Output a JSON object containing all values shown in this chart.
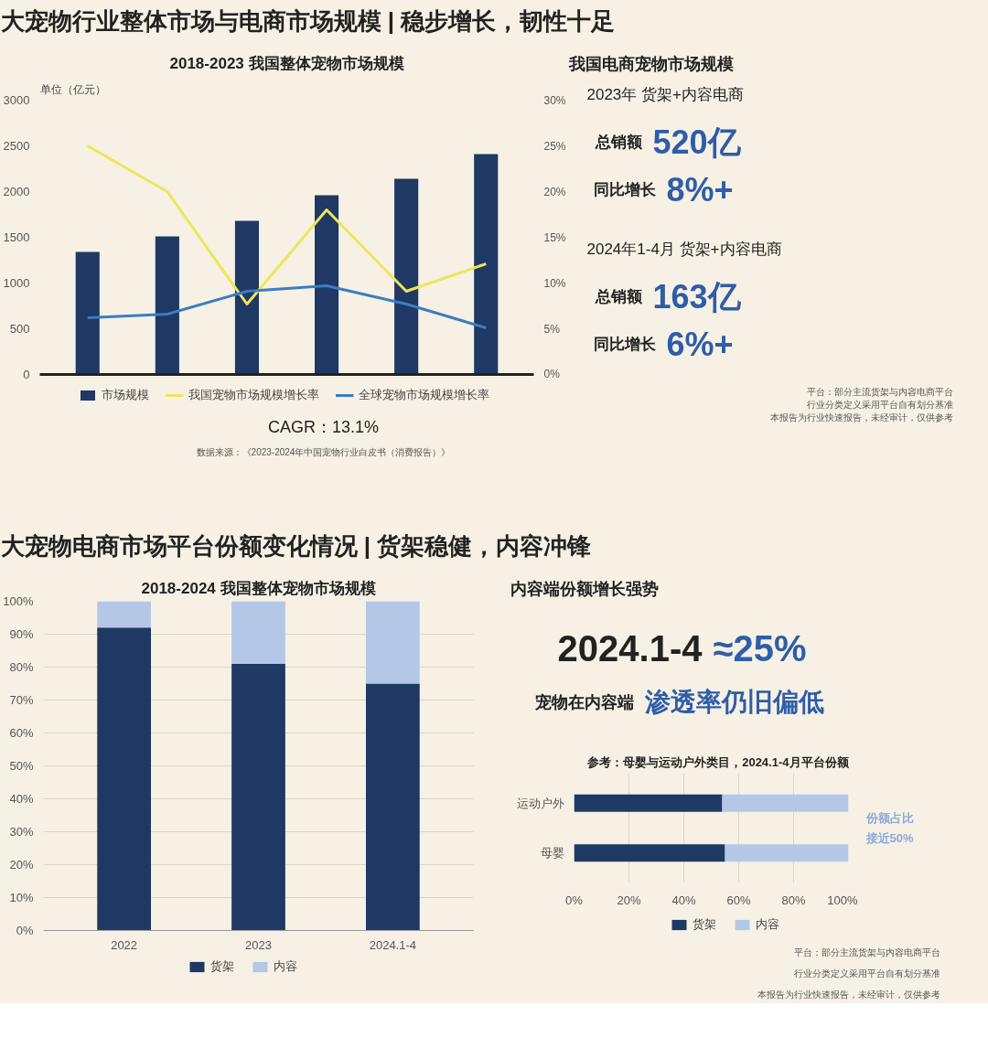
{
  "chart_data": [
    {
      "type": "other",
      "title": "大宠物行业整体市场与电商市场规模 | 稳步增长，韧性十足"
    },
    {
      "type": "bar",
      "title": "2018-2023 我国整体宠物市场规模",
      "ylabel": "单位（亿元）",
      "categories": [
        null,
        null,
        null,
        null,
        null,
        null
      ],
      "series": [
        {
          "name": "市场规模",
          "type": "bar",
          "color": "#1f3864",
          "values": [
            1340,
            1510,
            1680,
            1960,
            2140,
            2410
          ]
        },
        {
          "name": "我国宠物市场规模增长率",
          "type": "line",
          "axis": "y2",
          "color": "#ede65a",
          "values": [
            25.0,
            20.0,
            7.7,
            18.0,
            9.1,
            12.1
          ]
        },
        {
          "name": "全球宠物市场规模增长率",
          "type": "line",
          "axis": "y2",
          "color": "#3b7dc4",
          "values": [
            6.2,
            6.6,
            9.1,
            9.7,
            7.7,
            5.1
          ]
        }
      ],
      "ylim": [
        0,
        3000
      ],
      "yticks": [
        0,
        500,
        1000,
        1500,
        2000,
        2500,
        3000
      ],
      "y2lim": [
        0,
        30
      ],
      "y2ticks": [
        {
          "value": 0,
          "label": "0%"
        },
        {
          "value": 5,
          "label": "5%"
        },
        {
          "value": 10,
          "label": "10%"
        },
        {
          "value": 15,
          "label": "15%"
        },
        {
          "value": 20,
          "label": "20%"
        },
        {
          "value": 25,
          "label": "25%"
        },
        {
          "value": 30,
          "label": "30%"
        }
      ],
      "legend": "bottom",
      "marker": "none",
      "annotations": [
        "CAGR：13.1%",
        "数据来源：《2023-2024年中国宠物行业白皮书（消费报告）》"
      ]
    },
    {
      "type": "other",
      "title": "我国电商宠物市场规模",
      "annotations": [
        "2023年 货架+内容电商",
        "总销额 520亿",
        "同比增长 8%+",
        "2024年1-4月 货架+内容电商",
        "总销额 163亿",
        "同比增长 6%+",
        "平台：部分主流货架与内容电商平台",
        "行业分类定义采用平台自有划分基准",
        "本报告为行业快速报告，未经审计，仅供参考"
      ]
    },
    {
      "type": "other",
      "title": "大宠物电商市场平台份额变化情况 | 货架稳健，内容冲锋"
    },
    {
      "type": "bar",
      "title": "2018-2024 我国整体宠物市场规模",
      "categories": [
        "2022",
        "2023",
        "2024.1-4"
      ],
      "stacked": true,
      "series": [
        {
          "name": "货架",
          "color": "#1f3864",
          "values": [
            92,
            81,
            75
          ]
        },
        {
          "name": "内容",
          "color": "#b4c7e7",
          "values": [
            8,
            19,
            25
          ]
        }
      ],
      "ylim": [
        0,
        100
      ],
      "yticks": [
        {
          "value": 0,
          "label": "0%"
        },
        {
          "value": 10,
          "label": "10%"
        },
        {
          "value": 20,
          "label": "20%"
        },
        {
          "value": 30,
          "label": "30%"
        },
        {
          "value": 40,
          "label": "40%"
        },
        {
          "value": 50,
          "label": "50%"
        },
        {
          "value": 60,
          "label": "60%"
        },
        {
          "value": 70,
          "label": "70%"
        },
        {
          "value": 80,
          "label": "80%"
        },
        {
          "value": 90,
          "label": "90%"
        },
        {
          "value": 100,
          "label": "100%"
        }
      ],
      "grid": "y",
      "legend": "bottom"
    },
    {
      "type": "other",
      "title": "内容端份额增长强势",
      "annotations": [
        "2024.1-4 ≈25%",
        "宠物在内容端 渗透率仍旧偏低"
      ]
    },
    {
      "type": "bar",
      "title": "参考：母婴与运动户外类目，2024.1-4月平台份额",
      "categories": [
        "运动户外",
        "母婴"
      ],
      "stacked": true,
      "orientation": "horizontal",
      "series": [
        {
          "name": "货架",
          "color": "#1f3864",
          "values": [
            54,
            55
          ]
        },
        {
          "name": "内容",
          "color": "#b4c7e7",
          "values": [
            46,
            45
          ]
        }
      ],
      "xlim": [
        0,
        100
      ],
      "xticks": [
        {
          "value": 0,
          "label": "0%"
        },
        {
          "value": 20,
          "label": "20%"
        },
        {
          "value": 40,
          "label": "40%"
        },
        {
          "value": 60,
          "label": "60%"
        },
        {
          "value": 80,
          "label": "80%"
        },
        {
          "value": 100,
          "label": "100%"
        }
      ],
      "grid": "x",
      "legend": "bottom",
      "annotations": [
        "份额占比",
        "接近50%",
        "平台：部分主流货架与内容电商平台",
        "行业分类定义采用平台自有划分基准",
        "本报告为行业快速报告，未经审计，仅供参考"
      ]
    }
  ]
}
